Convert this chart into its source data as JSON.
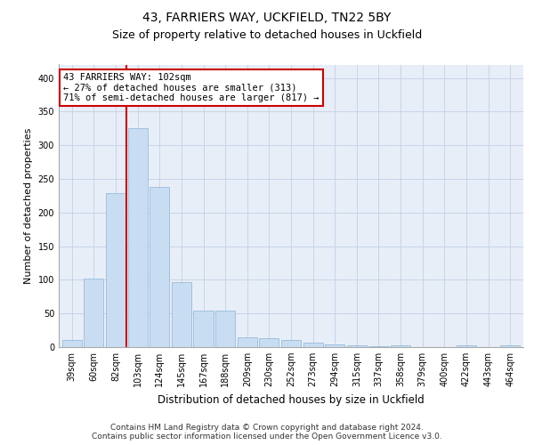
{
  "title1": "43, FARRIERS WAY, UCKFIELD, TN22 5BY",
  "title2": "Size of property relative to detached houses in Uckfield",
  "xlabel": "Distribution of detached houses by size in Uckfield",
  "ylabel": "Number of detached properties",
  "categories": [
    "39sqm",
    "60sqm",
    "82sqm",
    "103sqm",
    "124sqm",
    "145sqm",
    "167sqm",
    "188sqm",
    "209sqm",
    "230sqm",
    "252sqm",
    "273sqm",
    "294sqm",
    "315sqm",
    "337sqm",
    "358sqm",
    "379sqm",
    "400sqm",
    "422sqm",
    "443sqm",
    "464sqm"
  ],
  "values": [
    10,
    102,
    229,
    325,
    238,
    97,
    54,
    54,
    15,
    13,
    10,
    7,
    4,
    2,
    1,
    2,
    0,
    0,
    2,
    0,
    3
  ],
  "bar_color": "#c9ddf2",
  "bar_edge_color": "#8ab4d8",
  "annotation_text": "43 FARRIERS WAY: 102sqm\n← 27% of detached houses are smaller (313)\n71% of semi-detached houses are larger (817) →",
  "annotation_box_color": "#ffffff",
  "annotation_box_edge": "#cc0000",
  "vline_color": "#cc0000",
  "vline_x": 2.5,
  "ylim": [
    0,
    420
  ],
  "yticks": [
    0,
    50,
    100,
    150,
    200,
    250,
    300,
    350,
    400
  ],
  "grid_color": "#c8d4e8",
  "bg_color": "#e8eef8",
  "footer1": "Contains HM Land Registry data © Crown copyright and database right 2024.",
  "footer2": "Contains public sector information licensed under the Open Government Licence v3.0.",
  "title1_fontsize": 10,
  "title2_fontsize": 9,
  "xlabel_fontsize": 8.5,
  "ylabel_fontsize": 8,
  "tick_fontsize": 7,
  "footer_fontsize": 6.5,
  "annot_fontsize": 7.5
}
